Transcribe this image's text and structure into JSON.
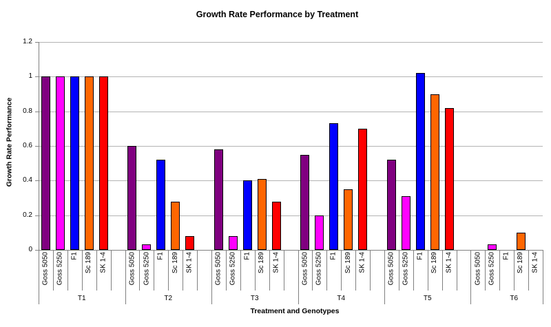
{
  "title": "Growth Rate Performance by Treatment",
  "chart_data": {
    "type": "bar",
    "title": "Growth Rate Performance by Treatment",
    "xlabel": "Treatment and Genotypes",
    "ylabel": "Growth Rate Performance",
    "ylim": [
      0,
      1.2
    ],
    "ytick_interval": 0.2,
    "ytick_labels": [
      "0",
      "0.2",
      "0.4",
      "0.6",
      "0.8",
      "1",
      "1.2"
    ],
    "grid": true,
    "legend": false,
    "groups": [
      "T1",
      "T2",
      "T3",
      "T4",
      "T5",
      "T6"
    ],
    "genotypes": [
      "Goss 5050",
      "Goss 5250",
      "F1",
      "Sc 189",
      "SK 1-4"
    ],
    "series": [
      {
        "name": "Goss 5050",
        "color": "#800080",
        "values": [
          1.0,
          0.6,
          0.58,
          0.55,
          0.52,
          0
        ]
      },
      {
        "name": "Goss 5250",
        "color": "#FF00FF",
        "values": [
          1.0,
          0.03,
          0.08,
          0.2,
          0.31,
          0.03
        ]
      },
      {
        "name": "F1",
        "color": "#0000FF",
        "values": [
          1.0,
          0.52,
          0.4,
          0.73,
          1.02,
          0
        ]
      },
      {
        "name": "Sc 189",
        "color": "#FF6600",
        "values": [
          1.0,
          0.28,
          0.41,
          0.35,
          0.9,
          0.1
        ]
      },
      {
        "name": "SK 1-4",
        "color": "#FF0000",
        "values": [
          1.0,
          0.08,
          0.28,
          0.7,
          0.82,
          0
        ]
      }
    ],
    "colors": {
      "gridline": "#b3b3b3",
      "axis": "#808080",
      "bar_border": "#000000",
      "background": "#ffffff"
    }
  }
}
